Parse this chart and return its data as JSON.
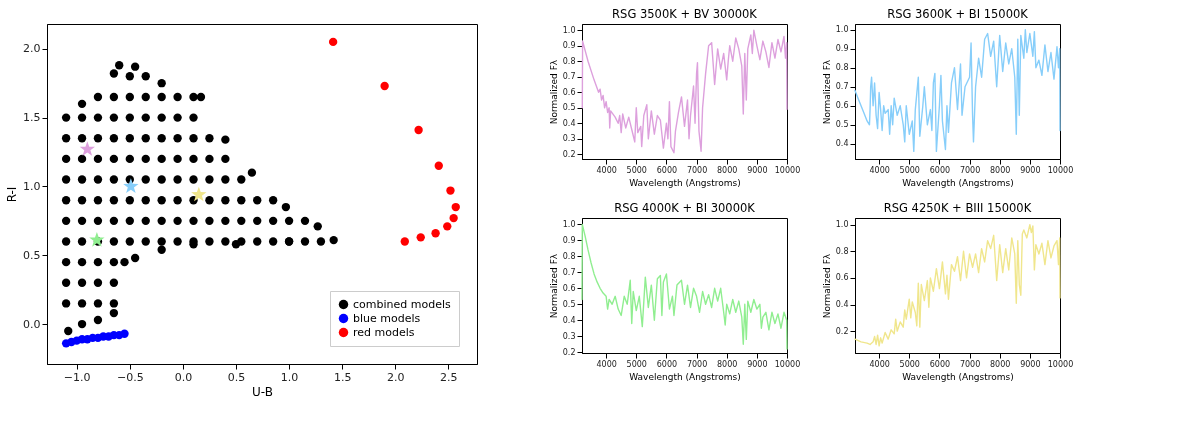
{
  "chart_data": [
    {
      "type": "scatter",
      "xlabel": "U-B",
      "ylabel": "R-I",
      "xlim": [
        -1.28,
        2.77
      ],
      "ylim": [
        -0.29,
        2.18
      ],
      "xticks": [
        {
          "value": -1.0,
          "label": "−1.0"
        },
        {
          "value": -0.5,
          "label": "−0.5"
        },
        {
          "value": 0.0,
          "label": "0.0"
        },
        {
          "value": 0.5,
          "label": "0.5"
        },
        {
          "value": 1.0,
          "label": "1.0"
        },
        {
          "value": 1.5,
          "label": "1.5"
        },
        {
          "value": 2.0,
          "label": "2.0"
        },
        {
          "value": 2.5,
          "label": "2.5"
        }
      ],
      "yticks": [
        {
          "value": 0.0,
          "label": "0.0"
        },
        {
          "value": 0.5,
          "label": "0.5"
        },
        {
          "value": 1.0,
          "label": "1.0"
        },
        {
          "value": 1.5,
          "label": "1.5"
        },
        {
          "value": 2.0,
          "label": "2.0"
        }
      ],
      "grid": false,
      "legend": "bottom right",
      "marker": "circle",
      "series": [
        {
          "name": "combined models",
          "color": "#000000",
          "x": [
            -1.08,
            -0.95,
            -0.8,
            -0.65,
            -1.1,
            -0.95,
            -0.8,
            -0.65,
            -1.1,
            -0.95,
            -0.8,
            -0.65,
            -1.1,
            -0.95,
            -0.8,
            -0.65,
            -0.55,
            -1.1,
            -0.95,
            -0.8,
            -0.65,
            -0.5,
            -0.35,
            -0.2,
            -0.05,
            0.1,
            0.25,
            0.4,
            0.55,
            0.7,
            0.85,
            1.0,
            1.15,
            1.3,
            1.42,
            -1.1,
            -0.95,
            -0.8,
            -0.65,
            -0.5,
            -0.35,
            -0.2,
            -0.05,
            0.1,
            0.25,
            0.4,
            0.55,
            0.7,
            0.85,
            1.0,
            1.15,
            1.27,
            -1.1,
            -0.95,
            -0.8,
            -0.65,
            -0.5,
            -0.35,
            -0.2,
            -0.05,
            0.1,
            0.25,
            0.4,
            0.55,
            0.7,
            0.85,
            0.97,
            -1.1,
            -0.95,
            -0.8,
            -0.65,
            -0.5,
            -0.35,
            -0.2,
            -0.05,
            0.1,
            0.25,
            0.4,
            0.55,
            0.65,
            -1.1,
            -0.95,
            -0.8,
            -0.65,
            -0.5,
            -0.35,
            -0.2,
            -0.05,
            0.1,
            0.25,
            0.4,
            -1.1,
            -0.95,
            -0.8,
            -0.65,
            -0.5,
            -0.35,
            -0.2,
            -0.05,
            0.1,
            0.25,
            0.4,
            -1.1,
            -0.95,
            -0.8,
            -0.65,
            -0.5,
            -0.35,
            -0.2,
            -0.05,
            0.1,
            -0.95,
            -0.8,
            -0.65,
            -0.5,
            -0.35,
            -0.2,
            -0.05,
            0.1,
            0.17,
            -0.65,
            -0.5,
            -0.35,
            -0.2,
            -0.6,
            -0.45,
            -0.45,
            -0.2,
            0.1,
            0.5,
            1.0
          ],
          "values": [
            -0.05,
            0.0,
            0.03,
            0.08,
            0.15,
            0.15,
            0.15,
            0.15,
            0.3,
            0.3,
            0.3,
            0.3,
            0.45,
            0.45,
            0.45,
            0.45,
            0.45,
            0.6,
            0.6,
            0.6,
            0.6,
            0.6,
            0.6,
            0.6,
            0.6,
            0.6,
            0.6,
            0.6,
            0.6,
            0.6,
            0.6,
            0.6,
            0.6,
            0.6,
            0.61,
            0.75,
            0.75,
            0.75,
            0.75,
            0.75,
            0.75,
            0.75,
            0.75,
            0.75,
            0.75,
            0.75,
            0.75,
            0.75,
            0.75,
            0.75,
            0.75,
            0.71,
            0.9,
            0.9,
            0.9,
            0.9,
            0.9,
            0.9,
            0.9,
            0.9,
            0.9,
            0.9,
            0.9,
            0.9,
            0.9,
            0.9,
            0.85,
            1.05,
            1.05,
            1.05,
            1.05,
            1.05,
            1.05,
            1.05,
            1.05,
            1.05,
            1.05,
            1.05,
            1.05,
            1.1,
            1.2,
            1.2,
            1.2,
            1.2,
            1.2,
            1.2,
            1.2,
            1.2,
            1.2,
            1.2,
            1.2,
            1.35,
            1.35,
            1.35,
            1.35,
            1.35,
            1.35,
            1.35,
            1.35,
            1.35,
            1.35,
            1.34,
            1.5,
            1.5,
            1.5,
            1.5,
            1.5,
            1.5,
            1.5,
            1.5,
            1.5,
            1.6,
            1.65,
            1.65,
            1.65,
            1.65,
            1.65,
            1.65,
            1.65,
            1.65,
            1.82,
            1.8,
            1.8,
            1.75,
            1.88,
            1.87,
            0.48,
            0.54,
            0.58,
            0.58,
            0.6
          ]
        },
        {
          "name": "blue models",
          "color": "#0000ff",
          "x": [
            -1.1,
            -1.05,
            -1.0,
            -0.95,
            -0.9,
            -0.85,
            -0.8,
            -0.75,
            -0.7,
            -0.65,
            -0.6,
            -0.55
          ],
          "values": [
            -0.14,
            -0.13,
            -0.12,
            -0.11,
            -0.11,
            -0.1,
            -0.1,
            -0.09,
            -0.09,
            -0.08,
            -0.08,
            -0.07
          ]
        },
        {
          "name": "red models",
          "color": "#ff0000",
          "x": [
            1.415,
            1.9,
            2.22,
            2.41,
            2.52,
            2.57,
            2.55,
            2.49,
            2.38,
            2.24,
            2.09
          ],
          "values": [
            2.05,
            1.73,
            1.41,
            1.15,
            0.97,
            0.85,
            0.77,
            0.71,
            0.66,
            0.63,
            0.6
          ]
        },
        {
          "color": "#dda0dd",
          "marker": "star",
          "x": [
            -0.9
          ],
          "values": [
            1.27
          ]
        },
        {
          "color": "#87cefa",
          "marker": "star",
          "x": [
            -0.49
          ],
          "values": [
            1.0
          ]
        },
        {
          "color": "#f0e68c",
          "marker": "star",
          "x": [
            0.15
          ],
          "values": [
            0.94
          ]
        },
        {
          "color": "#90ee90",
          "marker": "star",
          "x": [
            -0.81
          ],
          "values": [
            0.61
          ]
        }
      ]
    },
    {
      "type": "line",
      "title": "RSG 3500K + BV 30000K",
      "xlabel": "Wavelength (Angstroms)",
      "ylabel": "Normalized Fλ",
      "xlim": [
        3200,
        10000
      ],
      "ylim": [
        0.17,
        1.04
      ],
      "xticks": [
        4000,
        5000,
        6000,
        7000,
        8000,
        9000,
        10000
      ],
      "yticks": [
        0.2,
        0.3,
        0.4,
        0.5,
        0.6,
        0.7,
        0.8,
        0.9,
        {
          "value": 1.0,
          "label": "1.0"
        }
      ],
      "grid": false,
      "marker": "none",
      "line_style": "solid",
      "series": [
        {
          "color": "#dda0dd",
          "x": [
            3210,
            3220,
            3400,
            3600,
            3750,
            3800,
            3850,
            3900,
            3950,
            4000,
            4050,
            4100,
            4120,
            4150,
            4300,
            4400,
            4450,
            4500,
            4550,
            4650,
            4750,
            4850,
            4950,
            5000,
            5050,
            5150,
            5180,
            5250,
            5350,
            5400,
            5500,
            5600,
            5700,
            5800,
            5900,
            6000,
            6050,
            6100,
            6150,
            6250,
            6300,
            6400,
            6500,
            6600,
            6700,
            6750,
            6800,
            6900,
            6950,
            7000,
            7030,
            7080,
            7150,
            7200,
            7300,
            7400,
            7500,
            7600,
            7700,
            7800,
            7900,
            8000,
            8050,
            8100,
            8200,
            8300,
            8400,
            8500,
            8550,
            8600,
            8650,
            8700,
            8800,
            8850,
            8900,
            9000,
            9100,
            9200,
            9300,
            9400,
            9500,
            9600,
            9700,
            9800,
            9900,
            9950,
            9990,
            10000
          ],
          "values": [
            0.5,
            0.93,
            0.8,
            0.68,
            0.6,
            0.62,
            0.55,
            0.58,
            0.5,
            0.54,
            0.47,
            0.5,
            0.37,
            0.48,
            0.44,
            0.4,
            0.45,
            0.34,
            0.46,
            0.37,
            0.44,
            0.36,
            0.28,
            0.5,
            0.34,
            0.38,
            0.25,
            0.45,
            0.52,
            0.3,
            0.48,
            0.33,
            0.45,
            0.42,
            0.24,
            0.4,
            0.3,
            0.54,
            0.25,
            0.21,
            0.35,
            0.47,
            0.57,
            0.38,
            0.55,
            0.3,
            0.45,
            0.64,
            0.4,
            0.72,
            0.79,
            0.35,
            0.22,
            0.5,
            0.72,
            0.9,
            0.92,
            0.65,
            0.88,
            0.75,
            0.85,
            0.68,
            0.8,
            0.9,
            0.8,
            0.95,
            0.88,
            0.77,
            0.46,
            0.85,
            0.55,
            0.88,
            0.97,
            0.85,
            1.0,
            0.9,
            0.81,
            0.93,
            0.86,
            0.76,
            0.92,
            0.82,
            0.94,
            0.86,
            0.96,
            0.82,
            0.92,
            0.49
          ]
        }
      ]
    },
    {
      "type": "line",
      "title": "RSG 3600K + BI 15000K",
      "xlabel": "Wavelength (Angstroms)",
      "ylabel": "Normalized Fλ",
      "xlim": [
        3200,
        10000
      ],
      "ylim": [
        0.32,
        1.03
      ],
      "xticks": [
        4000,
        5000,
        6000,
        7000,
        8000,
        9000,
        10000
      ],
      "yticks": [
        0.4,
        0.5,
        0.6,
        0.7,
        0.8,
        0.9,
        {
          "value": 1.0,
          "label": "1.0"
        }
      ],
      "grid": false,
      "marker": "none",
      "line_style": "solid",
      "series": [
        {
          "color": "#87cefa",
          "x": [
            3200,
            3300,
            3400,
            3500,
            3600,
            3680,
            3700,
            3720,
            3750,
            3800,
            3850,
            3900,
            3950,
            4000,
            4050,
            4100,
            4150,
            4200,
            4300,
            4350,
            4400,
            4450,
            4500,
            4600,
            4700,
            4800,
            4850,
            4900,
            5000,
            5100,
            5150,
            5200,
            5300,
            5350,
            5450,
            5500,
            5600,
            5700,
            5750,
            5800,
            5850,
            5900,
            6000,
            6050,
            6100,
            6200,
            6250,
            6300,
            6400,
            6500,
            6600,
            6700,
            6750,
            6850,
            7000,
            7050,
            7100,
            7130,
            7200,
            7300,
            7400,
            7500,
            7600,
            7700,
            7800,
            7900,
            8000,
            8100,
            8200,
            8300,
            8400,
            8500,
            8550,
            8600,
            8650,
            8700,
            8800,
            8850,
            8900,
            9000,
            9100,
            9150,
            9200,
            9300,
            9400,
            9500,
            9600,
            9700,
            9800,
            9900,
            9950,
            9990,
            10000
          ],
          "values": [
            0.68,
            0.64,
            0.6,
            0.56,
            0.52,
            0.5,
            0.58,
            0.7,
            0.75,
            0.6,
            0.72,
            0.55,
            0.48,
            0.67,
            0.58,
            0.47,
            0.6,
            0.56,
            0.58,
            0.45,
            0.6,
            0.5,
            0.64,
            0.55,
            0.6,
            0.5,
            0.41,
            0.6,
            0.45,
            0.52,
            0.36,
            0.58,
            0.75,
            0.44,
            0.6,
            0.7,
            0.5,
            0.58,
            0.47,
            0.72,
            0.77,
            0.36,
            0.6,
            0.76,
            0.52,
            0.37,
            0.6,
            0.46,
            0.72,
            0.8,
            0.58,
            0.82,
            0.55,
            0.7,
            0.75,
            0.93,
            0.55,
            0.41,
            0.7,
            0.85,
            0.75,
            0.95,
            0.98,
            0.86,
            0.94,
            0.7,
            0.97,
            0.78,
            0.93,
            0.82,
            0.9,
            0.75,
            0.45,
            0.95,
            0.55,
            0.97,
            0.85,
            1.0,
            0.88,
            0.98,
            0.86,
            0.99,
            0.8,
            0.84,
            0.76,
            0.92,
            0.78,
            0.88,
            0.74,
            0.91,
            0.8,
            0.9,
            0.47
          ]
        }
      ]
    },
    {
      "type": "line",
      "title": "RSG 4000K + BI 30000K",
      "xlabel": "Wavelength (Angstroms)",
      "ylabel": "Normalized Fλ",
      "xlim": [
        3200,
        10000
      ],
      "ylim": [
        0.195,
        1.04
      ],
      "xticks": [
        4000,
        5000,
        6000,
        7000,
        8000,
        9000,
        10000
      ],
      "yticks": [
        0.2,
        0.3,
        0.4,
        0.5,
        0.6,
        0.7,
        0.8,
        0.9,
        {
          "value": 1.0,
          "label": "1.0"
        }
      ],
      "grid": false,
      "marker": "none",
      "line_style": "solid",
      "series": [
        {
          "color": "#90ee90",
          "x": [
            3200,
            3210,
            3300,
            3400,
            3500,
            3600,
            3700,
            3800,
            3900,
            4000,
            4050,
            4100,
            4200,
            4300,
            4400,
            4500,
            4600,
            4700,
            4800,
            4850,
            4900,
            5000,
            5100,
            5200,
            5300,
            5400,
            5500,
            5600,
            5700,
            5800,
            5850,
            5900,
            6000,
            6100,
            6200,
            6250,
            6350,
            6500,
            6600,
            6700,
            6800,
            6900,
            7000,
            7100,
            7200,
            7300,
            7400,
            7500,
            7600,
            7700,
            7800,
            7900,
            7950,
            8000,
            8100,
            8200,
            8300,
            8400,
            8500,
            8550,
            8600,
            8650,
            8700,
            8800,
            8900,
            9000,
            9100,
            9150,
            9200,
            9300,
            9400,
            9500,
            9600,
            9700,
            9800,
            9900,
            9990,
            10000
          ],
          "values": [
            0.53,
            1.0,
            0.93,
            0.84,
            0.76,
            0.69,
            0.64,
            0.6,
            0.57,
            0.55,
            0.47,
            0.53,
            0.5,
            0.55,
            0.47,
            0.43,
            0.55,
            0.5,
            0.65,
            0.38,
            0.58,
            0.46,
            0.55,
            0.36,
            0.67,
            0.48,
            0.62,
            0.4,
            0.66,
            0.68,
            0.43,
            0.64,
            0.69,
            0.47,
            0.55,
            0.43,
            0.62,
            0.65,
            0.5,
            0.62,
            0.48,
            0.6,
            0.55,
            0.45,
            0.58,
            0.5,
            0.56,
            0.48,
            0.6,
            0.52,
            0.6,
            0.45,
            0.37,
            0.5,
            0.44,
            0.53,
            0.45,
            0.52,
            0.42,
            0.25,
            0.5,
            0.28,
            0.52,
            0.45,
            0.53,
            0.47,
            0.5,
            0.35,
            0.42,
            0.45,
            0.34,
            0.45,
            0.38,
            0.44,
            0.35,
            0.45,
            0.4,
            0.22
          ]
        }
      ]
    },
    {
      "type": "line",
      "title": "RSG 4250K + BIII 15000K",
      "xlabel": "Wavelength (Angstroms)",
      "ylabel": "Normalized Fλ",
      "xlim": [
        3200,
        10000
      ],
      "ylim": [
        0.036,
        1.05
      ],
      "xticks": [
        4000,
        5000,
        6000,
        7000,
        8000,
        9000,
        10000
      ],
      "yticks": [
        0.2,
        0.4,
        0.6,
        0.8,
        {
          "value": 1.0,
          "label": "1.0"
        }
      ],
      "grid": false,
      "marker": "none",
      "line_style": "solid",
      "series": [
        {
          "color": "#f0e68c",
          "x": [
            3200,
            3400,
            3600,
            3700,
            3800,
            3850,
            3900,
            3950,
            4000,
            4050,
            4100,
            4200,
            4300,
            4400,
            4500,
            4550,
            4600,
            4700,
            4800,
            4850,
            4900,
            5000,
            5050,
            5100,
            5200,
            5250,
            5300,
            5350,
            5400,
            5500,
            5600,
            5650,
            5700,
            5800,
            5900,
            6000,
            6100,
            6200,
            6250,
            6300,
            6400,
            6500,
            6600,
            6700,
            6800,
            6900,
            7000,
            7100,
            7200,
            7300,
            7400,
            7500,
            7600,
            7700,
            7800,
            7900,
            8000,
            8100,
            8200,
            8300,
            8400,
            8500,
            8550,
            8600,
            8650,
            8700,
            8750,
            8800,
            8900,
            9000,
            9050,
            9100,
            9150,
            9200,
            9300,
            9400,
            9500,
            9600,
            9700,
            9800,
            9900,
            9950,
            9990,
            10000
          ],
          "values": [
            0.14,
            0.12,
            0.11,
            0.1,
            0.12,
            0.16,
            0.1,
            0.17,
            0.09,
            0.15,
            0.11,
            0.19,
            0.14,
            0.21,
            0.18,
            0.29,
            0.2,
            0.27,
            0.23,
            0.36,
            0.29,
            0.44,
            0.3,
            0.42,
            0.34,
            0.24,
            0.56,
            0.23,
            0.55,
            0.43,
            0.58,
            0.38,
            0.6,
            0.5,
            0.67,
            0.52,
            0.72,
            0.48,
            0.62,
            0.44,
            0.7,
            0.65,
            0.76,
            0.58,
            0.8,
            0.6,
            0.78,
            0.68,
            0.78,
            0.64,
            0.82,
            0.72,
            0.88,
            0.82,
            0.92,
            0.58,
            0.85,
            0.64,
            0.82,
            0.66,
            0.9,
            0.78,
            0.41,
            0.88,
            0.55,
            0.47,
            0.93,
            0.96,
            0.9,
            1.0,
            0.94,
            0.99,
            0.66,
            0.85,
            0.78,
            0.86,
            0.7,
            0.88,
            0.75,
            0.84,
            0.88,
            0.7,
            0.9,
            0.45
          ]
        }
      ]
    }
  ]
}
